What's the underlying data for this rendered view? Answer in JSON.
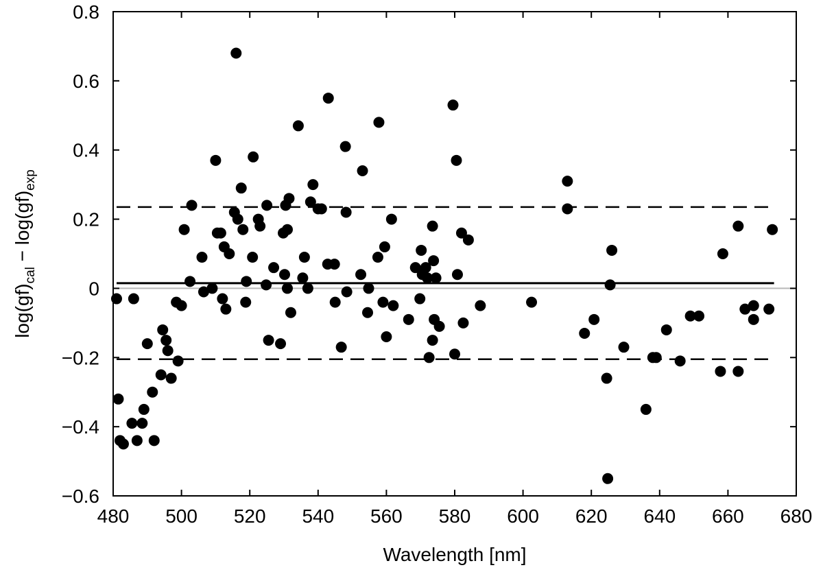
{
  "chart_data": {
    "type": "scatter",
    "xlabel": "Wavelength [nm]",
    "ylabel": {
      "base": "log(gf)",
      "sub1": "cal",
      "mid": " − log(gf)",
      "sub2": "exp"
    },
    "xlim": [
      480,
      680
    ],
    "ylim": [
      -0.6,
      0.8
    ],
    "x_ticks": [
      480,
      500,
      520,
      540,
      560,
      580,
      600,
      620,
      640,
      660,
      680
    ],
    "x_tick_labels": [
      "480",
      "500",
      "520",
      "540",
      "560",
      "580",
      "600",
      "620",
      "640",
      "660",
      "680"
    ],
    "y_ticks": [
      -0.6,
      -0.4,
      -0.2,
      0,
      0.2,
      0.4,
      0.6,
      0.8
    ],
    "y_tick_labels": [
      "−0.6",
      "−0.4",
      "−0.2",
      "0",
      "0.2",
      "0.4",
      "0.6",
      "0.8"
    ],
    "grid": false,
    "reference_lines": [
      {
        "kind": "zero",
        "y": 0,
        "style": "solid-gray"
      },
      {
        "kind": "mean",
        "y": 0.015,
        "style": "solid-black"
      },
      {
        "kind": "upper-bound",
        "y": 0.235,
        "style": "dashed"
      },
      {
        "kind": "lower-bound",
        "y": -0.205,
        "style": "dashed"
      }
    ],
    "points": [
      {
        "x": 481.0,
        "y": -0.03
      },
      {
        "x": 481.5,
        "y": -0.32
      },
      {
        "x": 482.0,
        "y": -0.44
      },
      {
        "x": 483.0,
        "y": -0.45
      },
      {
        "x": 485.5,
        "y": -0.39
      },
      {
        "x": 486.0,
        "y": -0.03
      },
      {
        "x": 487.0,
        "y": -0.44
      },
      {
        "x": 488.5,
        "y": -0.39
      },
      {
        "x": 489.0,
        "y": -0.35
      },
      {
        "x": 490.0,
        "y": -0.16
      },
      {
        "x": 491.5,
        "y": -0.3
      },
      {
        "x": 492.0,
        "y": -0.44
      },
      {
        "x": 494.0,
        "y": -0.25
      },
      {
        "x": 494.5,
        "y": -0.12
      },
      {
        "x": 495.5,
        "y": -0.15
      },
      {
        "x": 496.0,
        "y": -0.18
      },
      {
        "x": 497.0,
        "y": -0.26
      },
      {
        "x": 498.5,
        "y": -0.04
      },
      {
        "x": 499.0,
        "y": -0.21
      },
      {
        "x": 500.0,
        "y": -0.05
      },
      {
        "x": 500.8,
        "y": 0.17
      },
      {
        "x": 502.5,
        "y": 0.02
      },
      {
        "x": 503.0,
        "y": 0.24
      },
      {
        "x": 506.0,
        "y": 0.09
      },
      {
        "x": 506.5,
        "y": -0.01
      },
      {
        "x": 509.0,
        "y": 0.0
      },
      {
        "x": 510.0,
        "y": 0.37
      },
      {
        "x": 510.5,
        "y": 0.16
      },
      {
        "x": 511.5,
        "y": 0.16
      },
      {
        "x": 512.0,
        "y": -0.03
      },
      {
        "x": 512.5,
        "y": 0.12
      },
      {
        "x": 513.0,
        "y": -0.06
      },
      {
        "x": 514.0,
        "y": 0.1
      },
      {
        "x": 515.5,
        "y": 0.22
      },
      {
        "x": 516.0,
        "y": 0.68
      },
      {
        "x": 516.5,
        "y": 0.2
      },
      {
        "x": 517.5,
        "y": 0.29
      },
      {
        "x": 518.0,
        "y": 0.17
      },
      {
        "x": 518.8,
        "y": -0.04
      },
      {
        "x": 519.0,
        "y": 0.02
      },
      {
        "x": 520.8,
        "y": 0.09
      },
      {
        "x": 521.0,
        "y": 0.38
      },
      {
        "x": 522.5,
        "y": 0.2
      },
      {
        "x": 523.0,
        "y": 0.18
      },
      {
        "x": 524.8,
        "y": 0.01
      },
      {
        "x": 525.0,
        "y": 0.24
      },
      {
        "x": 525.5,
        "y": -0.15
      },
      {
        "x": 527.0,
        "y": 0.06
      },
      {
        "x": 529.0,
        "y": -0.16
      },
      {
        "x": 529.8,
        "y": 0.16
      },
      {
        "x": 530.2,
        "y": 0.04
      },
      {
        "x": 530.5,
        "y": 0.24
      },
      {
        "x": 531.0,
        "y": 0.17
      },
      {
        "x": 531.0,
        "y": 0.0
      },
      {
        "x": 531.5,
        "y": 0.26
      },
      {
        "x": 532.0,
        "y": -0.07
      },
      {
        "x": 534.2,
        "y": 0.47
      },
      {
        "x": 535.5,
        "y": 0.03
      },
      {
        "x": 536.0,
        "y": 0.09
      },
      {
        "x": 537.0,
        "y": 0.0
      },
      {
        "x": 537.8,
        "y": 0.25
      },
      {
        "x": 538.5,
        "y": 0.3
      },
      {
        "x": 540.0,
        "y": 0.23
      },
      {
        "x": 541.0,
        "y": 0.23
      },
      {
        "x": 542.8,
        "y": 0.07
      },
      {
        "x": 543.0,
        "y": 0.55
      },
      {
        "x": 544.8,
        "y": 0.07
      },
      {
        "x": 545.0,
        "y": -0.04
      },
      {
        "x": 546.8,
        "y": -0.17
      },
      {
        "x": 548.0,
        "y": 0.41
      },
      {
        "x": 548.2,
        "y": 0.22
      },
      {
        "x": 548.4,
        "y": -0.01
      },
      {
        "x": 552.5,
        "y": 0.04
      },
      {
        "x": 553.0,
        "y": 0.34
      },
      {
        "x": 554.5,
        "y": -0.07
      },
      {
        "x": 554.8,
        "y": 0.0
      },
      {
        "x": 557.8,
        "y": 0.48
      },
      {
        "x": 557.5,
        "y": 0.09
      },
      {
        "x": 559.0,
        "y": -0.04
      },
      {
        "x": 559.5,
        "y": 0.12
      },
      {
        "x": 560.0,
        "y": -0.14
      },
      {
        "x": 561.5,
        "y": 0.2
      },
      {
        "x": 562.0,
        "y": -0.05
      },
      {
        "x": 566.5,
        "y": -0.09
      },
      {
        "x": 568.5,
        "y": 0.06
      },
      {
        "x": 569.8,
        "y": -0.03
      },
      {
        "x": 570.2,
        "y": 0.11
      },
      {
        "x": 570.5,
        "y": 0.04
      },
      {
        "x": 571.5,
        "y": 0.06
      },
      {
        "x": 572.0,
        "y": 0.03
      },
      {
        "x": 572.5,
        "y": -0.2
      },
      {
        "x": 573.5,
        "y": 0.18
      },
      {
        "x": 573.8,
        "y": 0.08
      },
      {
        "x": 573.5,
        "y": -0.15
      },
      {
        "x": 574.0,
        "y": -0.09
      },
      {
        "x": 574.5,
        "y": 0.03
      },
      {
        "x": 575.5,
        "y": -0.11
      },
      {
        "x": 579.5,
        "y": 0.53
      },
      {
        "x": 580.0,
        "y": -0.19
      },
      {
        "x": 580.5,
        "y": 0.37
      },
      {
        "x": 580.8,
        "y": 0.04
      },
      {
        "x": 582.0,
        "y": 0.16
      },
      {
        "x": 582.5,
        "y": -0.1
      },
      {
        "x": 584.0,
        "y": 0.14
      },
      {
        "x": 587.5,
        "y": -0.05
      },
      {
        "x": 602.5,
        "y": -0.04
      },
      {
        "x": 613.0,
        "y": 0.31
      },
      {
        "x": 613.0,
        "y": 0.23
      },
      {
        "x": 618.0,
        "y": -0.13
      },
      {
        "x": 620.8,
        "y": -0.09
      },
      {
        "x": 624.5,
        "y": -0.26
      },
      {
        "x": 624.8,
        "y": -0.55
      },
      {
        "x": 625.5,
        "y": 0.01
      },
      {
        "x": 626.0,
        "y": 0.11
      },
      {
        "x": 629.5,
        "y": -0.17
      },
      {
        "x": 636.0,
        "y": -0.35
      },
      {
        "x": 638.0,
        "y": -0.2
      },
      {
        "x": 639.0,
        "y": -0.2
      },
      {
        "x": 642.0,
        "y": -0.12
      },
      {
        "x": 646.0,
        "y": -0.21
      },
      {
        "x": 649.0,
        "y": -0.08
      },
      {
        "x": 651.5,
        "y": -0.08
      },
      {
        "x": 657.8,
        "y": -0.24
      },
      {
        "x": 658.5,
        "y": 0.1
      },
      {
        "x": 663.0,
        "y": 0.18
      },
      {
        "x": 663.0,
        "y": -0.24
      },
      {
        "x": 665.0,
        "y": -0.06
      },
      {
        "x": 667.5,
        "y": -0.05
      },
      {
        "x": 667.5,
        "y": -0.09
      },
      {
        "x": 672.0,
        "y": -0.06
      },
      {
        "x": 673.0,
        "y": 0.17
      }
    ]
  }
}
